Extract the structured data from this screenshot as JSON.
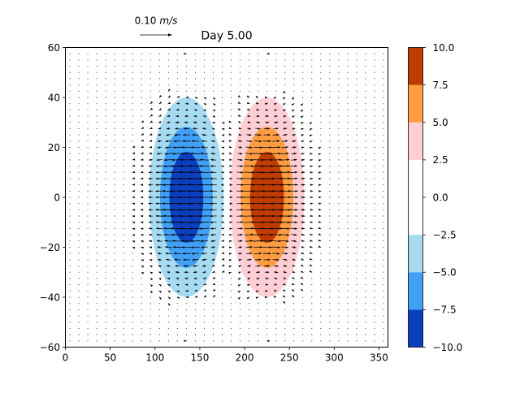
{
  "chart_data": {
    "type": "contour-quiver",
    "title": "Day 5.00",
    "xlabel": "",
    "ylabel": "",
    "xlim": [
      0,
      360
    ],
    "ylim": [
      -60,
      60
    ],
    "x_ticks": [
      0,
      50,
      100,
      150,
      200,
      250,
      300,
      350
    ],
    "y_ticks": [
      -60,
      -40,
      -20,
      0,
      20,
      40,
      60
    ],
    "quiver_key": {
      "value": 0.1,
      "label_number": "0.10",
      "label_unit": "m/s"
    },
    "colorbar": {
      "levels": [
        -10.0,
        -7.5,
        -5.0,
        -2.5,
        0.0,
        2.5,
        5.0,
        7.5,
        10.0
      ],
      "tick_labels": [
        "−10.0",
        "−7.5",
        "−5.0",
        "−2.5",
        "0.0",
        "2.5",
        "5.0",
        "7.5",
        "10.0"
      ],
      "colors": [
        "#0c3fbd",
        "#3fa0f5",
        "#a6daf0",
        "#ffffff",
        "#ffffff",
        "#ffcdd4",
        "#ff9d40",
        "#bf3c00"
      ]
    },
    "anomalies": [
      {
        "name": "negative",
        "center": [
          135,
          0
        ],
        "amplitude": -10.0,
        "sigma_x": 25,
        "sigma_y": 24
      },
      {
        "name": "positive",
        "center": [
          225,
          0
        ],
        "amplitude": 10.0,
        "sigma_x": 25,
        "sigma_y": 24
      }
    ],
    "wind_grid": {
      "x_start": 5,
      "x_step": 10,
      "y_start": -57.5,
      "y_step": 2.5
    }
  }
}
